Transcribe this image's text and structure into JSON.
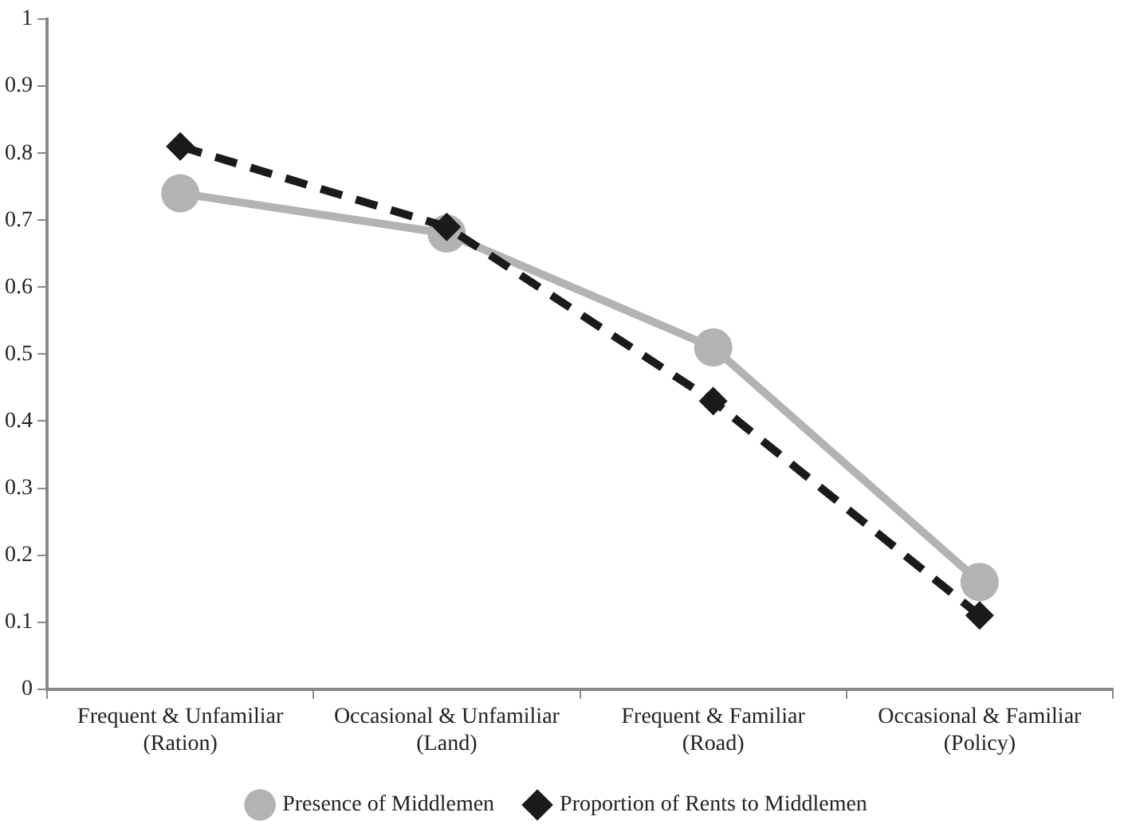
{
  "chart_data": {
    "type": "line",
    "categories": [
      "Frequent & Unfamiliar\n(Ration)",
      "Occasional & Unfamiliar\n(Land)",
      "Frequent & Familiar\n(Road)",
      "Occasional & Familiar\n(Policy)"
    ],
    "series": [
      {
        "name": "Presence of Middlemen",
        "color": "#b3b3b3",
        "values": [
          0.74,
          0.68,
          0.51,
          0.16
        ],
        "marker": "circle",
        "line_style": "solid"
      },
      {
        "name": "Proportion of Rents to Middlemen",
        "color": "#1a1a1a",
        "values": [
          0.81,
          0.69,
          0.43,
          0.11
        ],
        "marker": "diamond",
        "line_style": "dashed"
      }
    ],
    "ylim": [
      0,
      1
    ],
    "yticks": [
      0,
      0.1,
      0.2,
      0.3,
      0.4,
      0.5,
      0.6,
      0.7,
      0.8,
      0.9,
      1
    ],
    "grid": false,
    "legend": "bottom"
  }
}
